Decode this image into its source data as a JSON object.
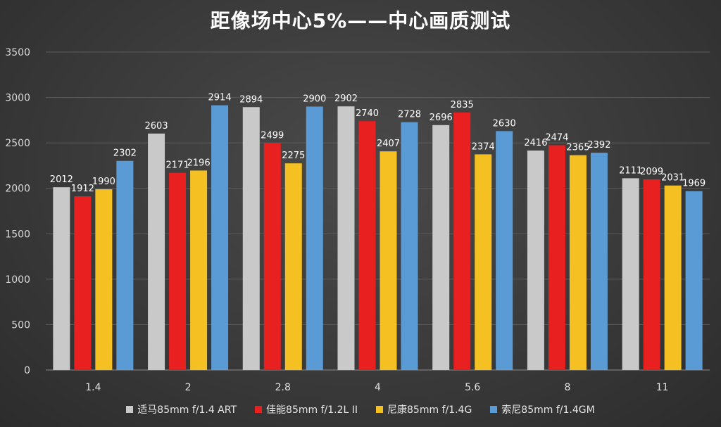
{
  "chart_data": {
    "type": "bar",
    "title": "距像场中心5%——中心画质测试",
    "xlabel": "",
    "ylabel": "",
    "ylim": [
      0,
      3500
    ],
    "yticks": [
      0,
      500,
      1000,
      1500,
      2000,
      2500,
      3000,
      3500
    ],
    "grid": true,
    "legend_position": "bottom",
    "categories": [
      "1.4",
      "2",
      "2.8",
      "4",
      "5.6",
      "8",
      "11"
    ],
    "series": [
      {
        "name": "适马85mm f/1.4 ART",
        "color": "#c9c9c9",
        "values": [
          2012,
          2603,
          2894,
          2902,
          2696,
          2416,
          2111
        ]
      },
      {
        "name": "佳能85mm f/1.2L II",
        "color": "#e8201f",
        "values": [
          1912,
          2171,
          2499,
          2740,
          2835,
          2474,
          2099
        ]
      },
      {
        "name": "尼康85mm f/1.4G",
        "color": "#f5c021",
        "values": [
          1990,
          2196,
          2275,
          2407,
          2374,
          2365,
          2031
        ]
      },
      {
        "name": "索尼85mm f/1.4GM",
        "color": "#5b9bd5",
        "values": [
          2302,
          2914,
          2900,
          2728,
          2630,
          2392,
          1969
        ]
      }
    ]
  }
}
